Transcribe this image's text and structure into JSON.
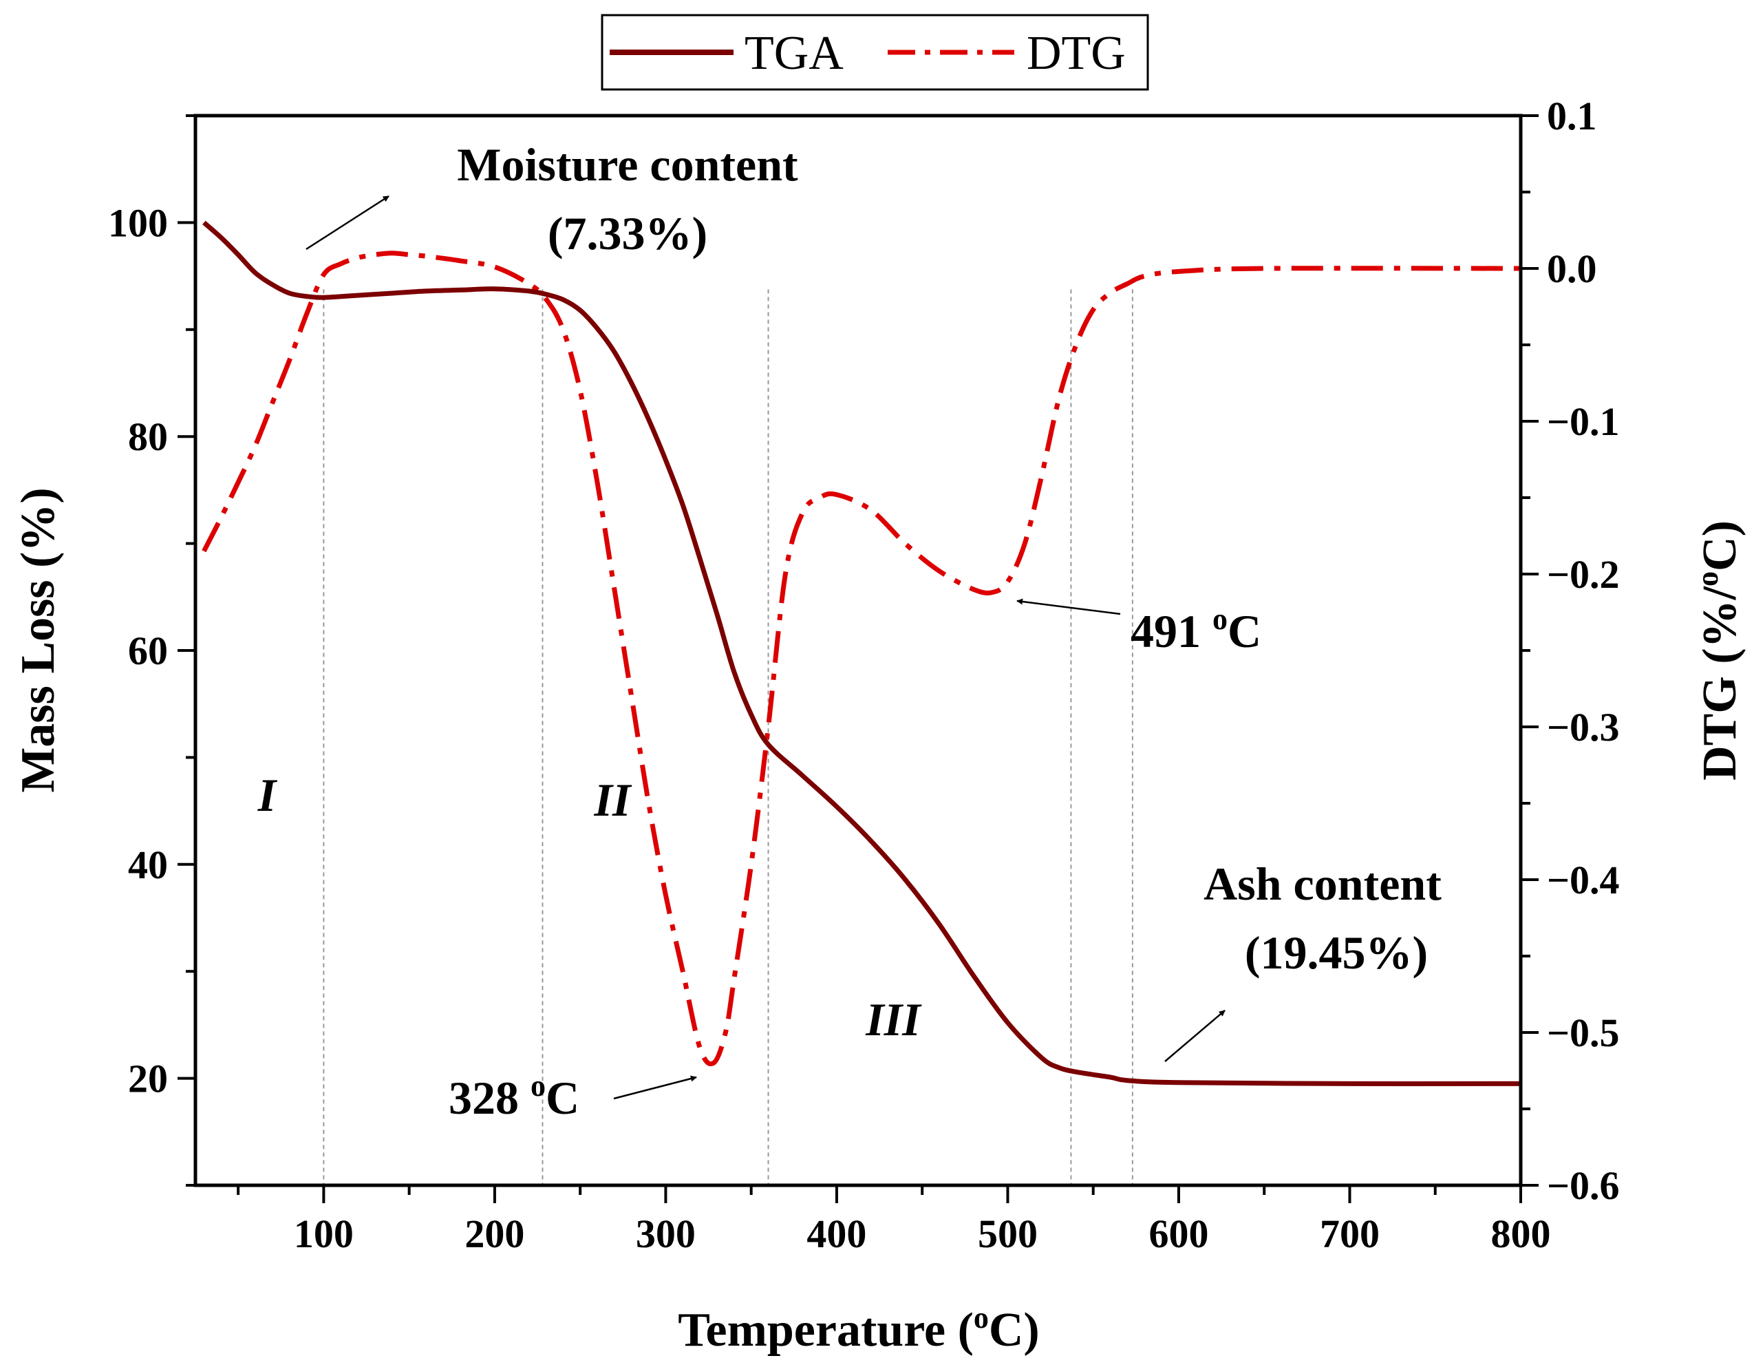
{
  "chart_data": {
    "type": "line",
    "xlabel": "Temperature (",
    "xlabel_sup": "o",
    "xlabel_end": "C)",
    "ylabel": "Mass Loss (%)",
    "y2label": "DTG (%/",
    "y2label_sup": "o",
    "y2label_end": "C)",
    "xlim": [
      25,
      800
    ],
    "ylim": [
      10,
      110
    ],
    "y2lim": [
      -0.6,
      0.1
    ],
    "x_ticks": [
      100,
      200,
      300,
      400,
      500,
      600,
      700,
      800
    ],
    "y_ticks": [
      20,
      40,
      60,
      80,
      100
    ],
    "y2_ticks": [
      0.1,
      0.0,
      -0.1,
      -0.2,
      -0.3,
      -0.4,
      -0.5,
      -0.6
    ],
    "x_tick_labels": [
      "100",
      "200",
      "300",
      "400",
      "500",
      "600",
      "700",
      "800"
    ],
    "y_tick_labels": [
      "20",
      "40",
      "60",
      "80",
      "100"
    ],
    "y2_tick_labels": [
      "0.1",
      "0.0",
      "−0.1",
      "−0.2",
      "−0.3",
      "−0.4",
      "−0.5",
      "−0.6"
    ],
    "legend": {
      "position": "top-center",
      "entries": [
        "TGA",
        "DTG"
      ]
    },
    "colors": {
      "TGA": "#7b0000",
      "DTG": "#dd0000",
      "guide": "#999999"
    },
    "series": [
      {
        "name": "TGA",
        "axis": "left",
        "style": "solid",
        "x": [
          30,
          40,
          50,
          60,
          70,
          80,
          90,
          100,
          120,
          140,
          160,
          180,
          200,
          220,
          230,
          240,
          250,
          260,
          270,
          280,
          290,
          300,
          310,
          320,
          330,
          340,
          350,
          360,
          380,
          400,
          420,
          440,
          460,
          480,
          500,
          520,
          530,
          540,
          560,
          570,
          600,
          700,
          800
        ],
        "y": [
          100,
          98.6,
          97,
          95.3,
          94.2,
          93.4,
          93.1,
          93,
          93.2,
          93.4,
          93.6,
          93.7,
          93.8,
          93.6,
          93.3,
          92.8,
          91.8,
          90.1,
          87.9,
          85,
          81.6,
          77.8,
          73.6,
          68.6,
          63.4,
          58,
          54,
          51.2,
          48.3,
          45.4,
          42.2,
          38.6,
          34.4,
          29.6,
          25.2,
          21.9,
          21,
          20.6,
          20.1,
          19.8,
          19.6,
          19.5,
          19.5
        ]
      },
      {
        "name": "DTG",
        "axis": "right",
        "style": "dash-dot",
        "x": [
          30,
          40,
          50,
          60,
          70,
          80,
          90,
          100,
          110,
          120,
          130,
          140,
          150,
          160,
          180,
          200,
          220,
          230,
          240,
          250,
          260,
          270,
          280,
          290,
          300,
          310,
          320,
          328,
          335,
          340,
          350,
          360,
          370,
          380,
          390,
          400,
          420,
          440,
          460,
          480,
          491,
          500,
          510,
          520,
          530,
          540,
          550,
          560,
          570,
          580,
          600,
          650,
          800
        ],
        "y": [
          -0.185,
          -0.163,
          -0.14,
          -0.116,
          -0.088,
          -0.06,
          -0.03,
          -0.004,
          0.003,
          0.007,
          0.009,
          0.01,
          0.009,
          0.008,
          0.005,
          0.001,
          -0.01,
          -0.02,
          -0.04,
          -0.08,
          -0.14,
          -0.21,
          -0.28,
          -0.35,
          -0.41,
          -0.46,
          -0.51,
          -0.52,
          -0.5,
          -0.465,
          -0.39,
          -0.3,
          -0.2,
          -0.16,
          -0.15,
          -0.148,
          -0.158,
          -0.18,
          -0.198,
          -0.21,
          -0.212,
          -0.205,
          -0.18,
          -0.135,
          -0.085,
          -0.05,
          -0.027,
          -0.016,
          -0.01,
          -0.005,
          -0.002,
          0.0,
          0.0
        ]
      }
    ],
    "guide_lines_x": [
      100,
      228,
      360,
      537,
      573
    ],
    "annotations": {
      "moisture_label": "Moisture content",
      "moisture_value": "(7.33%)",
      "ash_label": "Ash content",
      "ash_value": "(19.45%)",
      "peak1_value": "328 ",
      "peak1_sup": "o",
      "peak1_unit": "C",
      "peak2_value": "491 ",
      "peak2_sup": "o",
      "peak2_unit": "C",
      "region_1": "I",
      "region_2": "II",
      "region_3": "III"
    }
  }
}
